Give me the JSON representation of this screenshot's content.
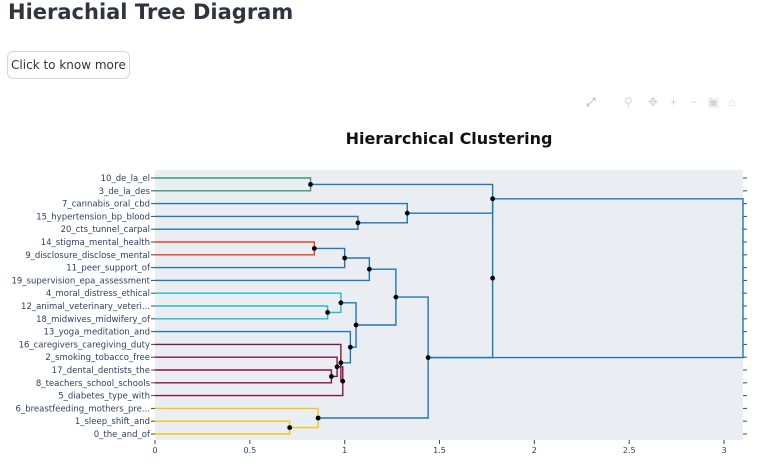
{
  "app": {
    "title": "Hierachial Tree Diagram",
    "button_label": "Click to know more"
  },
  "modebar": {
    "icons": [
      "expand-icon",
      "zoom-icon",
      "pan-icon",
      "zoom-in-icon",
      "zoom-out-icon",
      "autoscale-icon",
      "reset-axes-icon"
    ]
  },
  "colors": {
    "green": "#3d9970",
    "blue": "#1f77b4",
    "red": "#e8422e",
    "teal": "#22bfc9",
    "maroon": "#85144b",
    "yellow": "#f5c518",
    "plot_bg": "#eaedf1"
  },
  "chart_data": {
    "type": "dendrogram",
    "title": "Hierarchical Clustering",
    "xlabel": "",
    "ylabel": "",
    "xlim": [
      0,
      3.1
    ],
    "x_ticks": [
      0,
      0.5,
      1,
      1.5,
      2,
      2.5,
      3
    ],
    "x_tick_labels": [
      "0",
      "0.5",
      "1",
      "1.5",
      "2",
      "2.5",
      "3"
    ],
    "leaves": [
      "10_de_la_el",
      "3_de_la_des",
      "7_cannabis_oral_cbd",
      "15_hypertension_bp_blood",
      "20_cts_tunnel_carpal",
      "14_stigma_mental_health",
      "9_disclosure_disclose_mental",
      "11_peer_support_of",
      "19_supervision_epa_assessment",
      "4_moral_distress_ethical",
      "12_animal_veterinary_veteri...",
      "18_midwives_midwifery_of",
      "13_yoga_meditation_and",
      "16_caregivers_caregiving_duty",
      "2_smoking_tobacco_free",
      "17_dental_dentists_the",
      "8_teachers_school_schools",
      "5_diabetes_type_with",
      "6_breastfeeding_mothers_pre...",
      "1_sleep_shift_and",
      "0_the_and_of"
    ],
    "merges": [
      {
        "id": "A",
        "a": "L0",
        "b": "L1",
        "distance": 0.82,
        "color": "green"
      },
      {
        "id": "B",
        "a": "L3",
        "b": "L4",
        "distance": 1.07,
        "color": "blue"
      },
      {
        "id": "C",
        "a": "L2",
        "b": "B",
        "distance": 1.33,
        "color": "blue"
      },
      {
        "id": "D",
        "a": "A",
        "b": "C",
        "distance": 1.78,
        "color": "blue"
      },
      {
        "id": "E",
        "a": "L5",
        "b": "L6",
        "distance": 0.84,
        "color": "red"
      },
      {
        "id": "F",
        "a": "E",
        "b": "L7",
        "distance": 1.0,
        "color": "blue"
      },
      {
        "id": "G",
        "a": "F",
        "b": "L8",
        "distance": 1.13,
        "color": "blue"
      },
      {
        "id": "H",
        "a": "L10",
        "b": "L11",
        "distance": 0.91,
        "color": "teal"
      },
      {
        "id": "I",
        "a": "L9",
        "b": "H",
        "distance": 0.98,
        "color": "teal"
      },
      {
        "id": "J",
        "a": "L15",
        "b": "L16",
        "distance": 0.93,
        "color": "maroon"
      },
      {
        "id": "K",
        "a": "L14",
        "b": "J",
        "distance": 0.96,
        "color": "maroon"
      },
      {
        "id": "L",
        "a": "K",
        "b": "L17",
        "distance": 0.99,
        "color": "maroon"
      },
      {
        "id": "M",
        "a": "L13",
        "b": "L",
        "distance": 0.98,
        "color": "maroon"
      },
      {
        "id": "N",
        "a": "L12",
        "b": "M",
        "distance": 1.03,
        "color": "blue"
      },
      {
        "id": "O",
        "a": "I",
        "b": "N",
        "distance": 1.06,
        "color": "blue"
      },
      {
        "id": "P",
        "a": "G",
        "b": "O",
        "distance": 1.27,
        "color": "blue"
      },
      {
        "id": "Q",
        "a": "L19",
        "b": "L20",
        "distance": 0.71,
        "color": "yellow"
      },
      {
        "id": "R",
        "a": "L18",
        "b": "Q",
        "distance": 0.86,
        "color": "yellow"
      },
      {
        "id": "S",
        "a": "P",
        "b": "R",
        "distance": 1.44,
        "color": "blue"
      },
      {
        "id": "T",
        "a": "D",
        "b": "S",
        "distance": 1.78,
        "color": "blue"
      },
      {
        "id": "ROOT",
        "a": "T",
        "b": "T",
        "distance": 3.1,
        "color": "blue",
        "links": [
          "D",
          "S"
        ]
      }
    ]
  }
}
